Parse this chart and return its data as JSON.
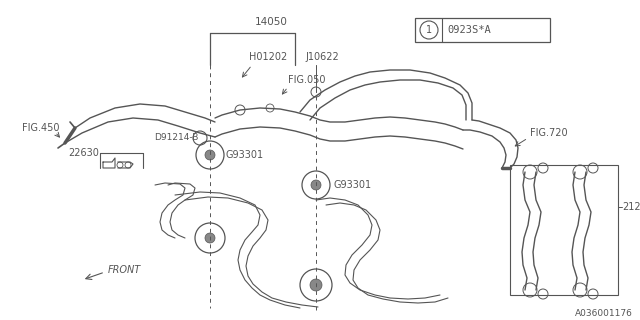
{
  "bg_color": "#ffffff",
  "line_color": "#555555",
  "doc_number": "A036001176",
  "title_circle_label": "1",
  "title_text": "0923S*A"
}
